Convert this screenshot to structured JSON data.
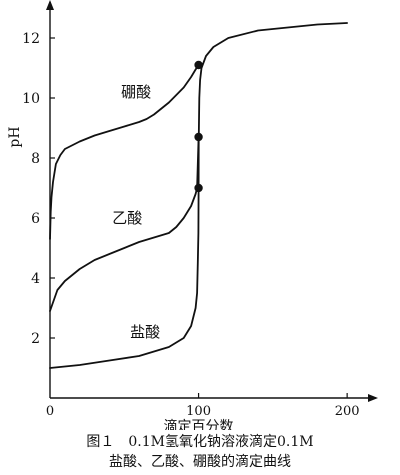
{
  "chart_data": {
    "type": "line",
    "xlabel": "滴定百分数",
    "ylabel": "pH",
    "xlim": [
      0,
      210
    ],
    "ylim": [
      0,
      13
    ],
    "x_ticks": [
      0,
      100,
      200
    ],
    "y_ticks": [
      2,
      4,
      6,
      8,
      10,
      12
    ],
    "grid": false,
    "legend": "none",
    "caption": [
      "图１　0.1M氢氧化钠溶液滴定0.1M",
      "盐酸、乙酸、硼酸的滴定曲线"
    ],
    "series": [
      {
        "name": "盐酸",
        "x": [
          0,
          20,
          40,
          60,
          80,
          90,
          95,
          98,
          99,
          99.5,
          99.9,
          100,
          100.1,
          100.5,
          101,
          102,
          105,
          110,
          120,
          140,
          160,
          180,
          200
        ],
        "y": [
          1.0,
          1.1,
          1.25,
          1.4,
          1.7,
          2.0,
          2.4,
          3.0,
          3.5,
          4.5,
          5.5,
          7.0,
          8.5,
          10.0,
          10.6,
          11.0,
          11.4,
          11.7,
          12.0,
          12.25,
          12.35,
          12.45,
          12.5
        ],
        "label_at": [
          64,
          2.2
        ]
      },
      {
        "name": "乙酸",
        "x": [
          0,
          5,
          10,
          20,
          30,
          40,
          50,
          60,
          70,
          80,
          85,
          90,
          95,
          98,
          99,
          100
        ],
        "y": [
          2.9,
          3.6,
          3.9,
          4.3,
          4.6,
          4.8,
          5.0,
          5.2,
          5.35,
          5.5,
          5.7,
          6.0,
          6.4,
          6.8,
          7.0,
          8.7
        ],
        "label_at": [
          52,
          6.0
        ]
      },
      {
        "name": "硼酸",
        "x": [
          0,
          0.5,
          1,
          2,
          4,
          7,
          10,
          20,
          30,
          40,
          50,
          60,
          65,
          70,
          80,
          90,
          95,
          98,
          100
        ],
        "y": [
          5.3,
          6.2,
          6.7,
          7.2,
          7.8,
          8.1,
          8.3,
          8.55,
          8.75,
          8.9,
          9.05,
          9.2,
          9.3,
          9.45,
          9.85,
          10.35,
          10.7,
          10.95,
          11.1
        ],
        "label_at": [
          58,
          10.2
        ]
      }
    ],
    "markers": [
      {
        "x": 100,
        "y": 7.0
      },
      {
        "x": 100,
        "y": 8.7
      },
      {
        "x": 100,
        "y": 11.1
      }
    ]
  }
}
